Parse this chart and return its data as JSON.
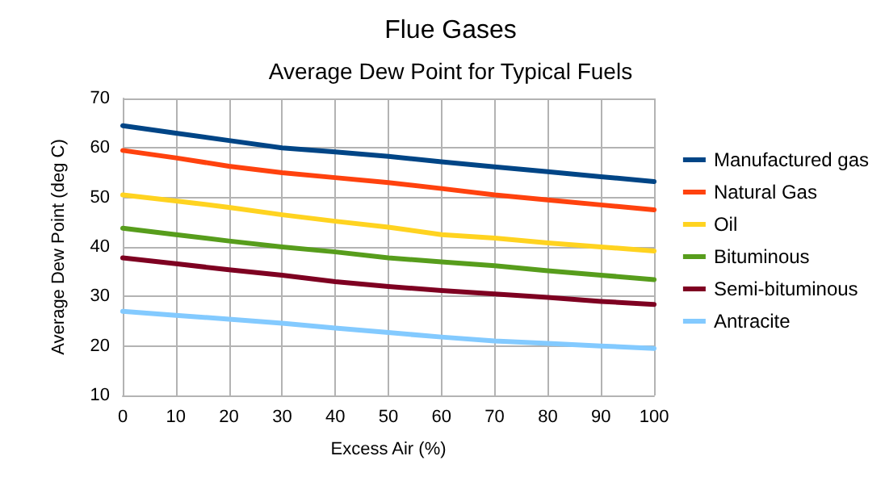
{
  "chart_data": {
    "type": "line",
    "title": "Flue Gases",
    "subtitle": "Average Dew Point for Typical Fuels",
    "xlabel": "Excess Air (%)",
    "ylabel": "Average Dew Point (deg C)",
    "x": [
      0,
      10,
      20,
      30,
      40,
      50,
      60,
      70,
      80,
      90,
      100
    ],
    "series": [
      {
        "name": "Manufactured gas",
        "color": "#004586",
        "values": [
          64.5,
          63,
          61.5,
          60,
          59.2,
          58.3,
          57.2,
          56.2,
          55.2,
          54.2,
          53.2
        ]
      },
      {
        "name": "Natural Gas",
        "color": "#ff420e",
        "values": [
          59.5,
          58,
          56.3,
          55,
          54,
          53,
          51.8,
          50.5,
          49.5,
          48.5,
          47.5
        ]
      },
      {
        "name": "Oil",
        "color": "#ffd320",
        "values": [
          50.5,
          49.3,
          48,
          46.5,
          45.2,
          44,
          42.5,
          41.8,
          40.8,
          40,
          39.2
        ]
      },
      {
        "name": "Bituminous",
        "color": "#579d1c",
        "values": [
          43.8,
          42.5,
          41.2,
          40,
          39,
          37.8,
          37,
          36.2,
          35.2,
          34.3,
          33.4
        ]
      },
      {
        "name": "Semi-bituminous",
        "color": "#7e0021",
        "values": [
          37.8,
          36.6,
          35.4,
          34.3,
          33,
          32,
          31.2,
          30.5,
          29.8,
          29,
          28.4
        ]
      },
      {
        "name": "Antracite",
        "color": "#83caff",
        "values": [
          27,
          26.2,
          25.4,
          24.6,
          23.6,
          22.7,
          21.8,
          21,
          20.5,
          20,
          19.5
        ]
      }
    ],
    "xlim": [
      0,
      100
    ],
    "xticks": [
      0,
      10,
      20,
      30,
      40,
      50,
      60,
      70,
      80,
      90,
      100
    ],
    "ylim": [
      10,
      70
    ],
    "yticks": [
      10,
      20,
      30,
      40,
      50,
      60,
      70
    ],
    "grid": true,
    "legend": "right",
    "marker": "none",
    "line_style": "solid"
  }
}
